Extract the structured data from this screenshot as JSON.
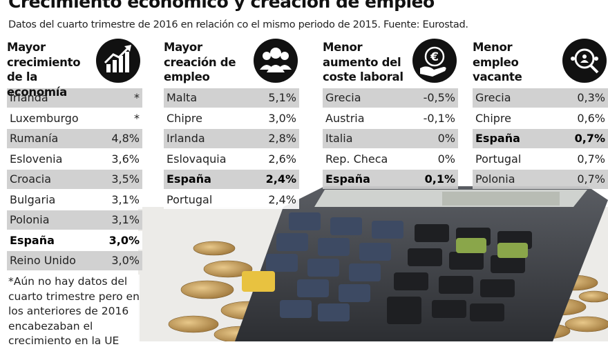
{
  "header": {
    "title": "Crecimiento económico y creación de empleo",
    "subtitle": "Datos del cuarto trimestre de 2016 en relación co el mismo periodo de 2015. Fuente: Eurostad."
  },
  "tables": [
    {
      "heading": "Mayor crecimiento de la economía",
      "highlight": 7,
      "rows": [
        [
          "Irlanda",
          "*"
        ],
        [
          "Luxemburgo",
          "*"
        ],
        [
          "Rumanía",
          "4,8%"
        ],
        [
          "Eslovenia",
          "3,6%"
        ],
        [
          "Croacia",
          "3,5%"
        ],
        [
          "Bulgaria",
          "3,1%"
        ],
        [
          "Polonia",
          "3,1%"
        ],
        [
          "España",
          "3,0%"
        ],
        [
          "Reino Unido",
          "3,0%"
        ]
      ]
    },
    {
      "heading": "Mayor creación de empleo",
      "highlight": 4,
      "rows": [
        [
          "Malta",
          "5,1%"
        ],
        [
          "Chipre",
          "3,0%"
        ],
        [
          "Irlanda",
          "2,8%"
        ],
        [
          "Eslovaquia",
          "2,6%"
        ],
        [
          "España",
          "2,4%"
        ],
        [
          "Portugal",
          "2,4%"
        ]
      ]
    },
    {
      "heading": "Menor aumento del coste laboral",
      "highlight": 4,
      "rows": [
        [
          "Grecia",
          "-0,5%"
        ],
        [
          "Austria",
          "-0,1%"
        ],
        [
          "Italia",
          "0%"
        ],
        [
          "Rep. Checa",
          "0%"
        ],
        [
          "España",
          "0,1%"
        ]
      ]
    },
    {
      "heading": "Menor empleo vacante",
      "highlight": 2,
      "rows": [
        [
          "Grecia",
          "0,3%"
        ],
        [
          "Chipre",
          "0,6%"
        ],
        [
          "España",
          "0,7%"
        ],
        [
          "Portugal",
          "0,7%"
        ],
        [
          "Polonia",
          "0,7%"
        ]
      ]
    }
  ],
  "footnote": "*Aún no hay datos del cuarto trimestre pero en los anteriores de 2016 encabezaban el crecimiento en la UE"
}
